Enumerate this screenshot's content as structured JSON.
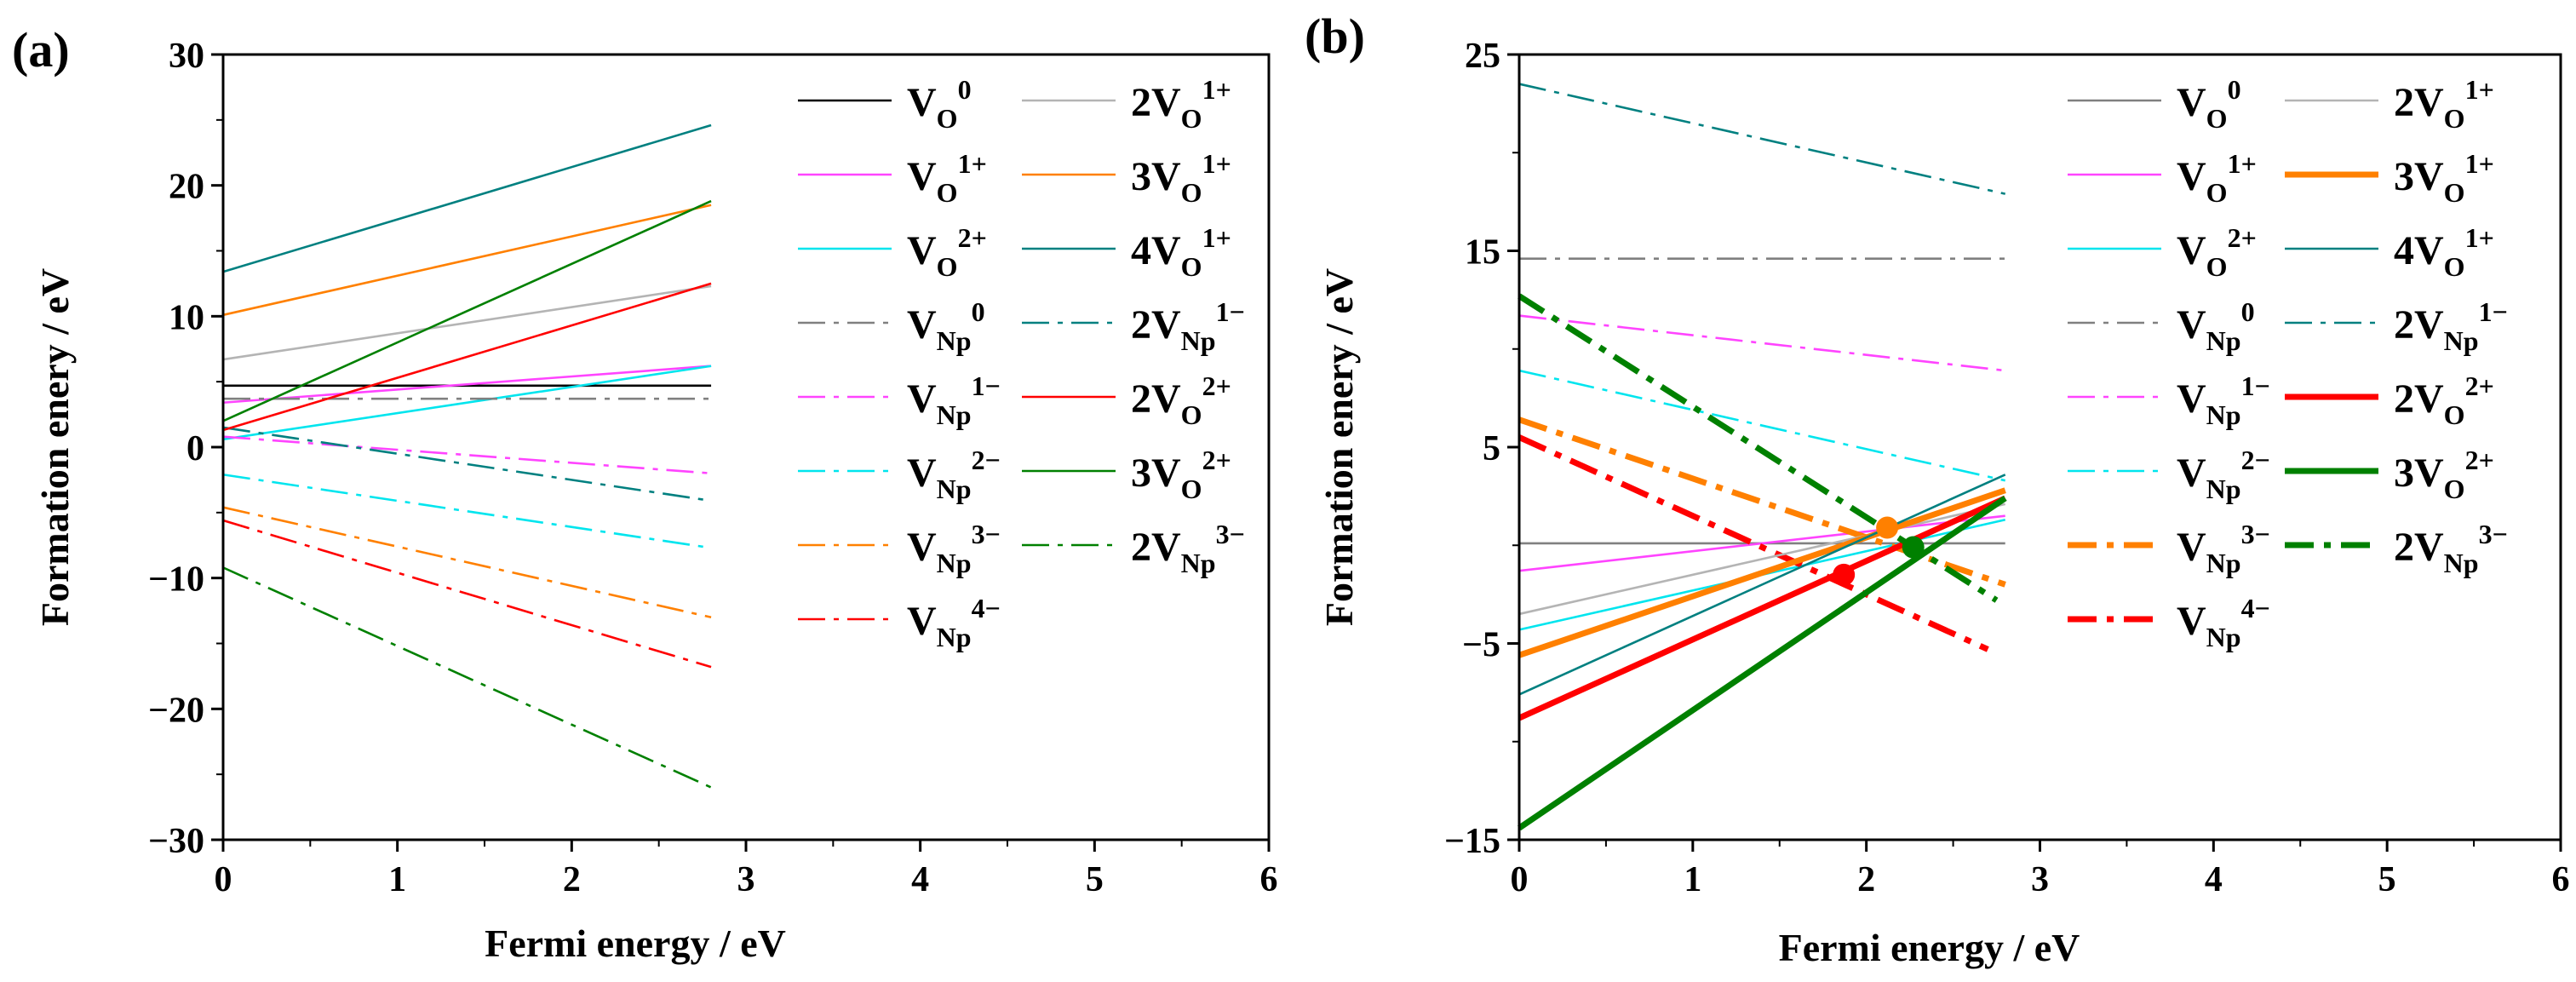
{
  "chart_data": [
    {
      "panel": "(a)",
      "type": "line",
      "xlabel": "Fermi energy / eV",
      "ylabel": "Formation enery / eV",
      "xlim": [
        0,
        6
      ],
      "ylim": [
        -30,
        30
      ],
      "xticks": [
        0,
        1,
        2,
        3,
        4,
        5,
        6
      ],
      "yticks": [
        -30,
        -20,
        -10,
        0,
        10,
        20,
        30
      ],
      "legend_position": "top-right",
      "series": [
        {
          "name": "V_O^0",
          "base": "V",
          "sub": "O",
          "sup": "0",
          "color": "#000000",
          "style": "solid",
          "width": "thin",
          "x": [
            0,
            2.8
          ],
          "y": [
            4.7,
            4.7
          ]
        },
        {
          "name": "V_O^1+",
          "base": "V",
          "sub": "O",
          "sup": "1+",
          "color": "#ff44ff",
          "style": "solid",
          "width": "thin",
          "x": [
            0,
            2.8
          ],
          "y": [
            3.4,
            6.2
          ]
        },
        {
          "name": "V_O^2+",
          "base": "V",
          "sub": "O",
          "sup": "2+",
          "color": "#00e5ee",
          "style": "solid",
          "width": "thin",
          "x": [
            0,
            2.8
          ],
          "y": [
            0.6,
            6.2
          ]
        },
        {
          "name": "V_Np^0",
          "base": "V",
          "sub": "Np",
          "sup": "0",
          "color": "#808080",
          "style": "dashdot",
          "width": "thin",
          "x": [
            0,
            2.8
          ],
          "y": [
            3.7,
            3.7
          ]
        },
        {
          "name": "V_Np^1-",
          "base": "V",
          "sub": "Np",
          "sup": "1−",
          "color": "#ff44ff",
          "style": "dashdot",
          "width": "thin",
          "x": [
            0,
            2.8
          ],
          "y": [
            0.8,
            -2.0
          ]
        },
        {
          "name": "V_Np^2-",
          "base": "V",
          "sub": "Np",
          "sup": "2−",
          "color": "#00e5ee",
          "style": "dashdot",
          "width": "thin",
          "x": [
            0,
            2.8
          ],
          "y": [
            -2.1,
            -7.7
          ]
        },
        {
          "name": "V_Np^3-",
          "base": "V",
          "sub": "Np",
          "sup": "3−",
          "color": "#ff8000",
          "style": "dashdot",
          "width": "thin",
          "x": [
            0,
            2.8
          ],
          "y": [
            -4.6,
            -13.0
          ]
        },
        {
          "name": "V_Np^4-",
          "base": "V",
          "sub": "Np",
          "sup": "4−",
          "color": "#ff0000",
          "style": "dashdot",
          "width": "thin",
          "x": [
            0,
            2.8
          ],
          "y": [
            -5.6,
            -16.8
          ]
        },
        {
          "name": "2V_O^1+",
          "base": "2V",
          "sub": "O",
          "sup": "1+",
          "color": "#b4b4b4",
          "style": "solid",
          "width": "thin",
          "x": [
            0,
            2.8
          ],
          "y": [
            6.7,
            12.3
          ]
        },
        {
          "name": "3V_O^1+",
          "base": "3V",
          "sub": "O",
          "sup": "1+",
          "color": "#ff8000",
          "style": "solid",
          "width": "thin",
          "x": [
            0,
            2.8
          ],
          "y": [
            10.1,
            18.5
          ]
        },
        {
          "name": "4V_O^1+",
          "base": "4V",
          "sub": "O",
          "sup": "1+",
          "color": "#008080",
          "style": "solid",
          "width": "thin",
          "x": [
            0,
            2.8
          ],
          "y": [
            13.4,
            24.6
          ]
        },
        {
          "name": "2V_Np^1-",
          "base": "2V",
          "sub": "Np",
          "sup": "1−",
          "color": "#008080",
          "style": "dashdot",
          "width": "thin",
          "x": [
            0,
            2.8
          ],
          "y": [
            1.5,
            -4.1
          ]
        },
        {
          "name": "2V_O^2+",
          "base": "2V",
          "sub": "O",
          "sup": "2+",
          "color": "#ff0000",
          "style": "solid",
          "width": "thin",
          "x": [
            0,
            2.8
          ],
          "y": [
            1.3,
            12.5
          ]
        },
        {
          "name": "3V_O^2+",
          "base": "3V",
          "sub": "O",
          "sup": "2+",
          "color": "#008000",
          "style": "solid",
          "width": "thin",
          "x": [
            0,
            2.8
          ],
          "y": [
            2.0,
            18.8
          ]
        },
        {
          "name": "2V_Np^3-",
          "base": "2V",
          "sub": "Np",
          "sup": "3−",
          "color": "#008000",
          "style": "dashdot",
          "width": "thin",
          "x": [
            0,
            2.8
          ],
          "y": [
            -9.2,
            -26.0
          ]
        }
      ],
      "markers": []
    },
    {
      "panel": "(b)",
      "type": "line",
      "xlabel": "Fermi energy / eV",
      "ylabel": "Formation enery / eV",
      "xlim": [
        0,
        6
      ],
      "ylim": [
        -15,
        25
      ],
      "xticks": [
        0,
        1,
        2,
        3,
        4,
        5,
        6
      ],
      "yticks": [
        -15,
        -5,
        5,
        15,
        25
      ],
      "legend_position": "top-right",
      "series": [
        {
          "name": "V_O^0",
          "base": "V",
          "sub": "O",
          "sup": "0",
          "color": "#808080",
          "style": "solid",
          "width": "thin",
          "x": [
            0,
            2.8
          ],
          "y": [
            0.1,
            0.1
          ]
        },
        {
          "name": "V_O^1+",
          "base": "V",
          "sub": "O",
          "sup": "1+",
          "color": "#ff44ff",
          "style": "solid",
          "width": "thin",
          "x": [
            0,
            2.8
          ],
          "y": [
            -1.3,
            1.5
          ]
        },
        {
          "name": "V_O^2+",
          "base": "V",
          "sub": "O",
          "sup": "2+",
          "color": "#00e5ee",
          "style": "solid",
          "width": "thin",
          "x": [
            0,
            2.8
          ],
          "y": [
            -4.3,
            1.3
          ]
        },
        {
          "name": "V_Np^0",
          "base": "V",
          "sub": "Np",
          "sup": "0",
          "color": "#808080",
          "style": "dashdot",
          "width": "thin",
          "x": [
            0,
            2.8
          ],
          "y": [
            14.6,
            14.6
          ]
        },
        {
          "name": "V_Np^1-",
          "base": "V",
          "sub": "Np",
          "sup": "1−",
          "color": "#ff44ff",
          "style": "dashdot",
          "width": "thin",
          "x": [
            0,
            2.8
          ],
          "y": [
            11.7,
            8.9
          ]
        },
        {
          "name": "V_Np^2-",
          "base": "V",
          "sub": "Np",
          "sup": "2−",
          "color": "#00e5ee",
          "style": "dashdot",
          "width": "thin",
          "x": [
            0,
            2.8
          ],
          "y": [
            8.9,
            3.3
          ]
        },
        {
          "name": "V_Np^3-",
          "base": "V",
          "sub": "Np",
          "sup": "3−",
          "color": "#ff8000",
          "style": "dashdot",
          "width": "thick",
          "x": [
            0,
            2.8
          ],
          "y": [
            6.4,
            -2.0
          ]
        },
        {
          "name": "V_Np^4-",
          "base": "V",
          "sub": "Np",
          "sup": "4−",
          "color": "#ff0000",
          "style": "dashdot",
          "width": "thick",
          "x": [
            0,
            2.7
          ],
          "y": [
            5.5,
            -5.3
          ]
        },
        {
          "name": "2V_O^1+",
          "base": "2V",
          "sub": "O",
          "sup": "1+",
          "color": "#b4b4b4",
          "style": "solid",
          "width": "thin",
          "x": [
            0,
            2.8
          ],
          "y": [
            -3.5,
            2.1
          ]
        },
        {
          "name": "3V_O^1+",
          "base": "3V",
          "sub": "O",
          "sup": "1+",
          "color": "#ff8000",
          "style": "solid",
          "width": "thick",
          "x": [
            0,
            2.8
          ],
          "y": [
            -5.6,
            2.8
          ]
        },
        {
          "name": "4V_O^1+",
          "base": "4V",
          "sub": "O",
          "sup": "1+",
          "color": "#008080",
          "style": "solid",
          "width": "thin",
          "x": [
            0,
            2.8
          ],
          "y": [
            -7.6,
            3.6
          ]
        },
        {
          "name": "2V_Np^1-",
          "base": "2V",
          "sub": "Np",
          "sup": "1−",
          "color": "#008080",
          "style": "dashdot",
          "width": "thin",
          "x": [
            0,
            2.8
          ],
          "y": [
            23.5,
            17.9
          ]
        },
        {
          "name": "2V_O^2+",
          "base": "2V",
          "sub": "O",
          "sup": "2+",
          "color": "#ff0000",
          "style": "solid",
          "width": "thick",
          "x": [
            0,
            2.8
          ],
          "y": [
            -8.8,
            2.4
          ]
        },
        {
          "name": "3V_O^2+",
          "base": "3V",
          "sub": "O",
          "sup": "2+",
          "color": "#008000",
          "style": "solid",
          "width": "thick",
          "x": [
            0,
            2.8
          ],
          "y": [
            -14.4,
            2.4
          ]
        },
        {
          "name": "2V_Np^3-",
          "base": "2V",
          "sub": "Np",
          "sup": "3−",
          "color": "#008000",
          "style": "dashdot",
          "width": "thick",
          "x": [
            0,
            2.75
          ],
          "y": [
            12.7,
            -2.8
          ]
        }
      ],
      "markers": [
        {
          "x": 1.87,
          "y": -1.5,
          "color": "#ff0000"
        },
        {
          "x": 2.12,
          "y": 0.9,
          "color": "#ff8000"
        },
        {
          "x": 2.27,
          "y": -0.1,
          "color": "#008000"
        }
      ]
    }
  ]
}
